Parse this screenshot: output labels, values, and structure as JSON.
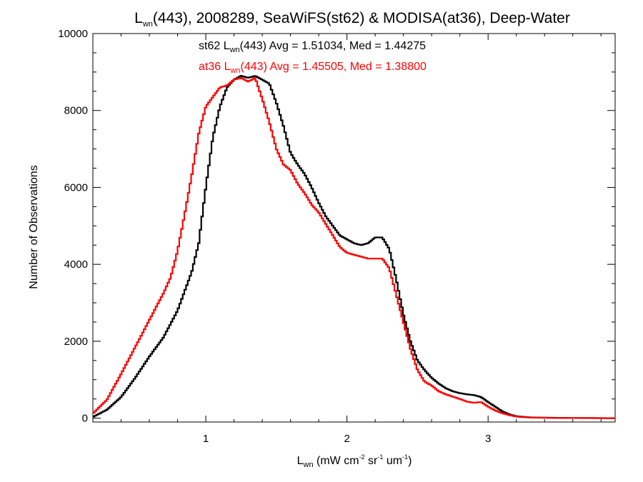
{
  "chart_data": {
    "type": "line",
    "title": {
      "prefix": "L",
      "sub": "wn",
      "rest": "(443), 2008289, SeaWiFS(st62) & MODISA(at36), Deep-Water"
    },
    "xlabel": {
      "main": "L",
      "sub": "wn",
      "p1": " (mW cm",
      "sup1": "-2",
      "p2": " sr",
      "sup2": "-1",
      "p3": " um",
      "sup3": "-1",
      "p4": ")"
    },
    "ylabel": "Number of Observations",
    "xlim": [
      0.2,
      3.9
    ],
    "ylim": [
      -100,
      10000
    ],
    "x_ticks": [
      1,
      2,
      3
    ],
    "x_tick_labels": [
      "1",
      "2",
      "3"
    ],
    "y_ticks": [
      0,
      2000,
      4000,
      6000,
      8000,
      10000
    ],
    "y_tick_labels": [
      "0",
      "2000",
      "4000",
      "6000",
      "8000",
      "10000"
    ],
    "grid": false,
    "legend_position": "top-center",
    "series": [
      {
        "name": "st62",
        "color": "#000000",
        "label": {
          "pre": "st62 L",
          "sub": "wn",
          "post": "(443) Avg = 1.51034, Med = 1.44275"
        },
        "points": [
          [
            0.2,
            30
          ],
          [
            0.3,
            220
          ],
          [
            0.4,
            550
          ],
          [
            0.5,
            1050
          ],
          [
            0.6,
            1600
          ],
          [
            0.7,
            2100
          ],
          [
            0.8,
            2800
          ],
          [
            0.9,
            3800
          ],
          [
            0.95,
            4550
          ],
          [
            1.0,
            6000
          ],
          [
            1.05,
            7300
          ],
          [
            1.1,
            8100
          ],
          [
            1.15,
            8600
          ],
          [
            1.2,
            8800
          ],
          [
            1.25,
            8900
          ],
          [
            1.3,
            8850
          ],
          [
            1.35,
            8900
          ],
          [
            1.4,
            8800
          ],
          [
            1.45,
            8700
          ],
          [
            1.5,
            8200
          ],
          [
            1.55,
            7600
          ],
          [
            1.6,
            6900
          ],
          [
            1.65,
            6600
          ],
          [
            1.7,
            6350
          ],
          [
            1.75,
            6000
          ],
          [
            1.8,
            5600
          ],
          [
            1.85,
            5250
          ],
          [
            1.9,
            5000
          ],
          [
            1.95,
            4750
          ],
          [
            2.0,
            4650
          ],
          [
            2.05,
            4550
          ],
          [
            2.1,
            4500
          ],
          [
            2.15,
            4550
          ],
          [
            2.2,
            4700
          ],
          [
            2.25,
            4700
          ],
          [
            2.3,
            4400
          ],
          [
            2.35,
            3600
          ],
          [
            2.4,
            2700
          ],
          [
            2.45,
            2000
          ],
          [
            2.5,
            1500
          ],
          [
            2.55,
            1250
          ],
          [
            2.6,
            1050
          ],
          [
            2.65,
            900
          ],
          [
            2.7,
            780
          ],
          [
            2.75,
            700
          ],
          [
            2.8,
            650
          ],
          [
            2.85,
            620
          ],
          [
            2.9,
            600
          ],
          [
            2.95,
            550
          ],
          [
            3.0,
            420
          ],
          [
            3.05,
            300
          ],
          [
            3.1,
            180
          ],
          [
            3.15,
            100
          ],
          [
            3.2,
            50
          ],
          [
            3.3,
            20
          ],
          [
            3.5,
            8
          ],
          [
            3.9,
            0
          ]
        ]
      },
      {
        "name": "at36",
        "color": "#ff0000",
        "label": {
          "pre": "at36 L",
          "sub": "wn",
          "post": "(443) Avg = 1.45505, Med = 1.38800"
        },
        "points": [
          [
            0.2,
            120
          ],
          [
            0.3,
            480
          ],
          [
            0.4,
            1150
          ],
          [
            0.5,
            1850
          ],
          [
            0.6,
            2550
          ],
          [
            0.7,
            3250
          ],
          [
            0.75,
            3650
          ],
          [
            0.8,
            4350
          ],
          [
            0.85,
            5300
          ],
          [
            0.9,
            6300
          ],
          [
            0.95,
            7400
          ],
          [
            1.0,
            8100
          ],
          [
            1.05,
            8350
          ],
          [
            1.1,
            8600
          ],
          [
            1.15,
            8650
          ],
          [
            1.2,
            8800
          ],
          [
            1.25,
            8850
          ],
          [
            1.3,
            8750
          ],
          [
            1.35,
            8850
          ],
          [
            1.4,
            8300
          ],
          [
            1.45,
            7700
          ],
          [
            1.5,
            7000
          ],
          [
            1.55,
            6600
          ],
          [
            1.6,
            6450
          ],
          [
            1.65,
            6100
          ],
          [
            1.7,
            5850
          ],
          [
            1.75,
            5550
          ],
          [
            1.8,
            5350
          ],
          [
            1.85,
            5050
          ],
          [
            1.9,
            4750
          ],
          [
            1.95,
            4450
          ],
          [
            2.0,
            4300
          ],
          [
            2.05,
            4250
          ],
          [
            2.1,
            4200
          ],
          [
            2.15,
            4150
          ],
          [
            2.2,
            4150
          ],
          [
            2.25,
            4150
          ],
          [
            2.3,
            3900
          ],
          [
            2.35,
            3200
          ],
          [
            2.4,
            2500
          ],
          [
            2.45,
            1800
          ],
          [
            2.5,
            1250
          ],
          [
            2.55,
            950
          ],
          [
            2.6,
            850
          ],
          [
            2.65,
            700
          ],
          [
            2.7,
            620
          ],
          [
            2.75,
            560
          ],
          [
            2.8,
            500
          ],
          [
            2.85,
            430
          ],
          [
            2.9,
            400
          ],
          [
            2.95,
            420
          ],
          [
            3.0,
            300
          ],
          [
            3.05,
            200
          ],
          [
            3.1,
            130
          ],
          [
            3.15,
            80
          ],
          [
            3.2,
            40
          ],
          [
            3.3,
            15
          ],
          [
            3.5,
            5
          ],
          [
            3.9,
            0
          ]
        ]
      }
    ]
  }
}
